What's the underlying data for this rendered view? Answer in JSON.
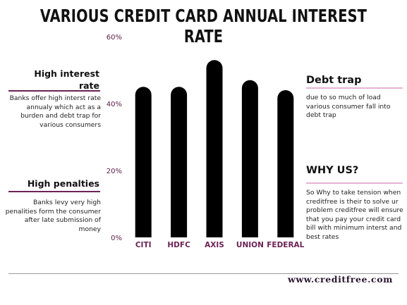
{
  "chart_data": {
    "type": "bar",
    "title": "VARIOUS CREDIT CARD ANNUAL INTEREST RATE",
    "categories": [
      "CITI",
      "HDFC",
      "AXIS",
      "UNION",
      "FEDERAL"
    ],
    "values": [
      45,
      45,
      53,
      47,
      44
    ],
    "ylim": [
      0,
      60
    ],
    "yticks": [
      "0%",
      "20%",
      "40%",
      "60%"
    ],
    "ytick_values": [
      0,
      20,
      40,
      60
    ],
    "bar_color": "#000000",
    "tick_color": "#5a1d45",
    "category_color": "#6b2356"
  },
  "panels": {
    "left_1": {
      "heading": "High interest rate",
      "text": "Banks offer high interst rate annualy which act as a burden and debt trap for various consumers"
    },
    "left_2": {
      "heading": "High penalties",
      "text": "Banks levy very high penalities form the consumer after late submission of money"
    },
    "right_1": {
      "heading": "Debt trap",
      "text": "due to so much of load various consumer fall into debt trap"
    },
    "right_2": {
      "heading": "WHY US?",
      "text": "So Why to take tension when creditfree is their to solve ur problem creditfree will ensure that you pay your credit card bill with minimum interst and best rates"
    }
  },
  "footer": {
    "url": "www.creditfree.com"
  }
}
